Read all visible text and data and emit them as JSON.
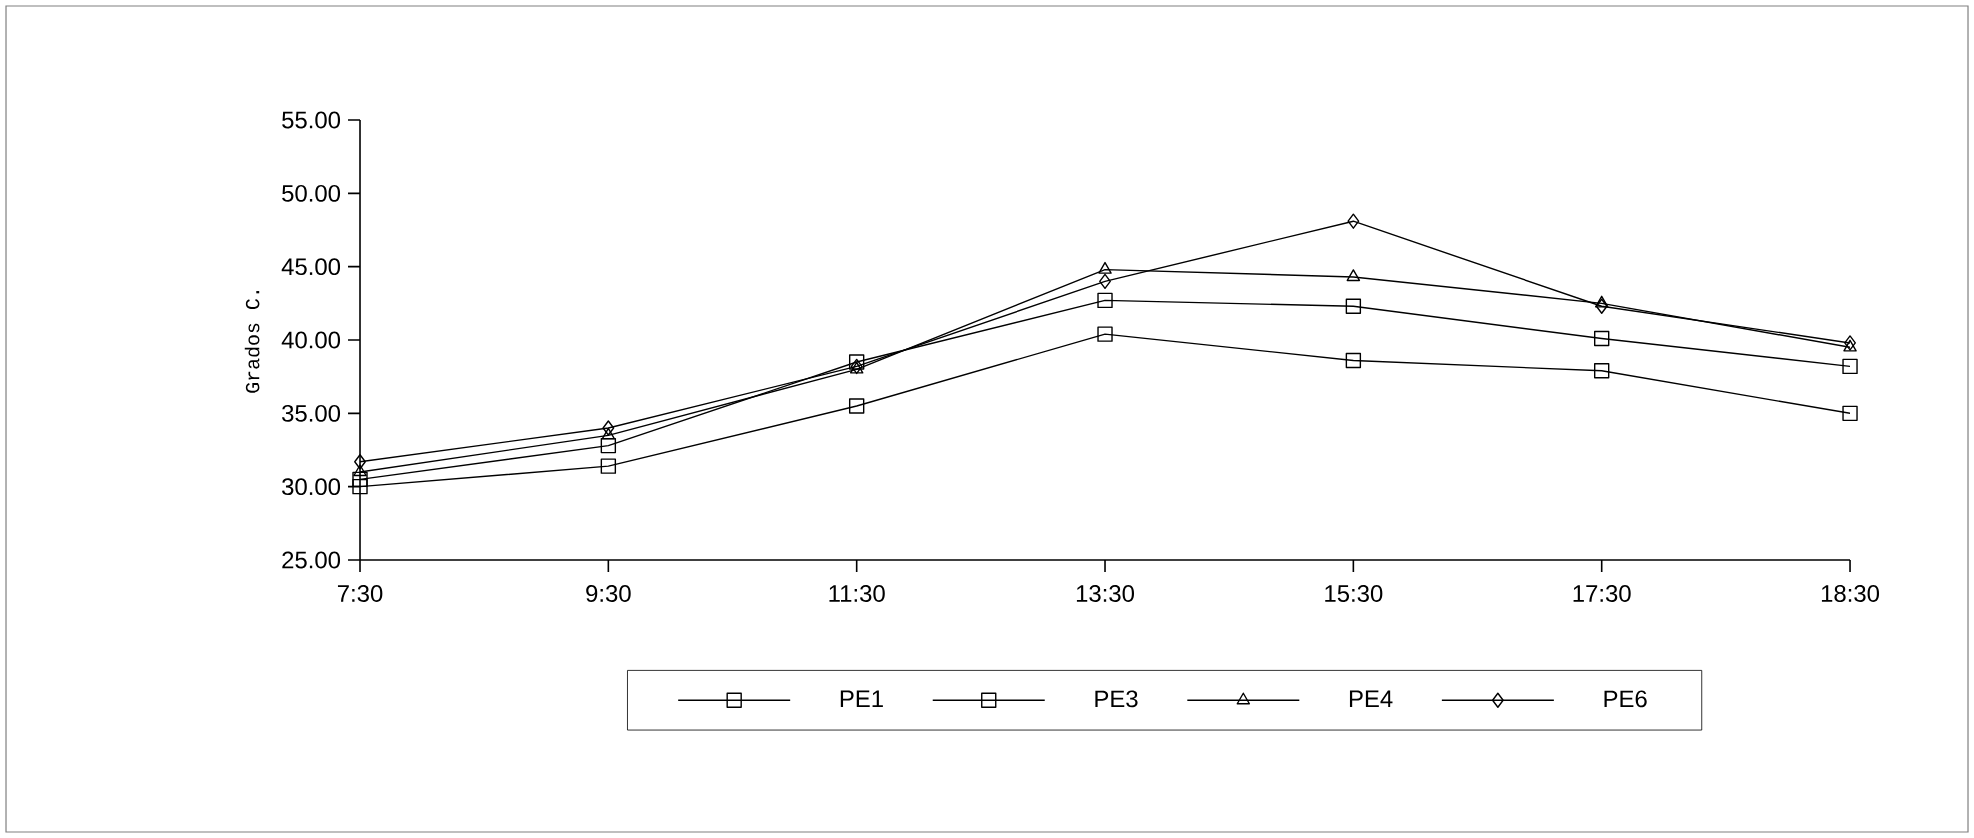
{
  "chart_data": {
    "type": "line",
    "ylabel": "Grados C.",
    "categories": [
      "7:30",
      "9:30",
      "11:30",
      "13:30",
      "15:30",
      "17:30",
      "18:30"
    ],
    "ylim": [
      25,
      55
    ],
    "yticks": [
      {
        "value": 25,
        "label": "25.00"
      },
      {
        "value": 30,
        "label": "30.00"
      },
      {
        "value": 35,
        "label": "35.00"
      },
      {
        "value": 40,
        "label": "40.00"
      },
      {
        "value": 45,
        "label": "45.00"
      },
      {
        "value": 50,
        "label": "50.00"
      },
      {
        "value": 55,
        "label": "55.00"
      }
    ],
    "series": [
      {
        "name": "PE1",
        "color": "#000000",
        "marker": "square",
        "values": [
          30.0,
          31.4,
          35.5,
          40.4,
          38.6,
          37.9,
          35.0
        ]
      },
      {
        "name": "PE3",
        "color": "#000000",
        "marker": "square",
        "values": [
          30.5,
          32.8,
          38.5,
          42.7,
          42.3,
          40.1,
          38.2
        ]
      },
      {
        "name": "PE4",
        "color": "#000000",
        "marker": "triangle",
        "values": [
          31.0,
          33.5,
          38.0,
          44.8,
          44.3,
          42.5,
          39.5
        ]
      },
      {
        "name": "PE6",
        "color": "#000000",
        "marker": "diamond",
        "values": [
          31.7,
          34.0,
          38.2,
          44.0,
          48.1,
          42.3,
          39.8
        ]
      }
    ],
    "legend": "bottom",
    "grid": false,
    "line_style": "solid"
  }
}
